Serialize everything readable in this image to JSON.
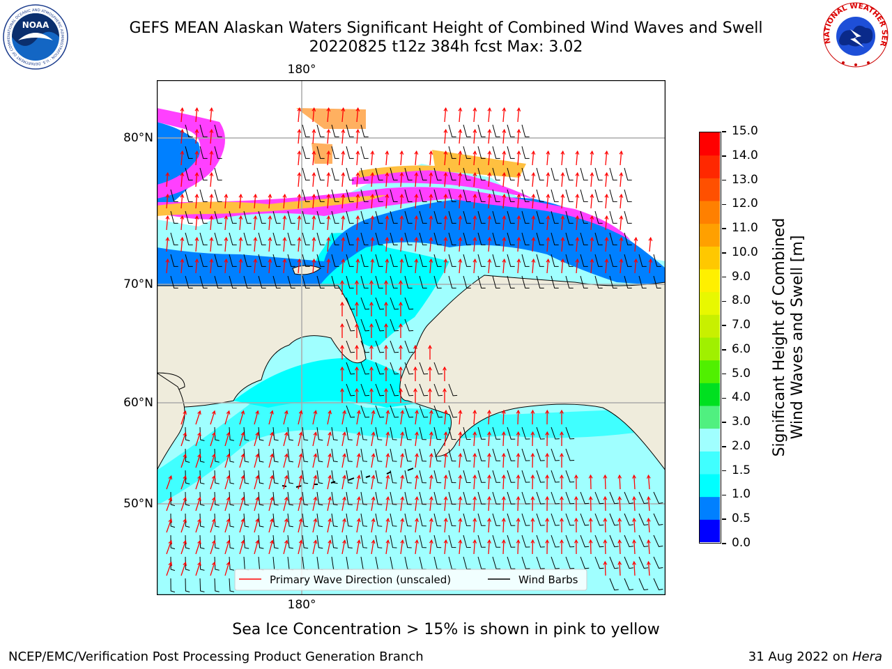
{
  "header": {
    "title_line1": "GEFS MEAN Alaskan Waters Significant Height of Combined Wind Waves and Swell",
    "title_line2": "20220825 t12z 384h fcst   Max: 3.02"
  },
  "logos": {
    "left": "NOAA",
    "right": "NATIONAL WEATHER SERVICE",
    "left_ring": "NATIONAL OCEANIC AND ATMOSPHERIC ADMINISTRATION · U.S. DEPARTMENT OF COMMERCE"
  },
  "map": {
    "lon_label_top": "180°",
    "lon_label_bottom": "180°",
    "lat_labels": [
      "80°N",
      "70°N",
      "60°N",
      "50°N"
    ],
    "land_color": "#efecdc",
    "legend": {
      "wave_label": "Primary Wave Direction (unscaled)",
      "wind_label": "Wind Barbs",
      "wave_color": "#ff0000",
      "wind_color": "#000000"
    }
  },
  "colorbar": {
    "label_line1": "Significant Height of Combined",
    "label_line2": "Wind Waves and Swell [m]",
    "ticks": [
      "0.0",
      "0.5",
      "1.0",
      "1.5",
      "2.0",
      "3.0",
      "4.0",
      "5.0",
      "6.0",
      "7.0",
      "8.0",
      "9.0",
      "10.0",
      "11.0",
      "12.0",
      "13.0",
      "14.0",
      "15.0"
    ],
    "colors": [
      "#0000ff",
      "#0080ff",
      "#00ffff",
      "#40ffff",
      "#a0ffff",
      "#50f080",
      "#00e020",
      "#50f000",
      "#a0f000",
      "#c8f000",
      "#e8f800",
      "#fff000",
      "#ffc800",
      "#ffa000",
      "#ff8000",
      "#ff5000",
      "#ff2800",
      "#ff0000"
    ]
  },
  "caption": "Sea Ice Concentration > 15% is shown in pink to yellow",
  "footer": {
    "left": "NCEP/EMC/Verification Post Processing Product Generation Branch",
    "date": "31 Aug 2022 on ",
    "machine": "Hera"
  }
}
